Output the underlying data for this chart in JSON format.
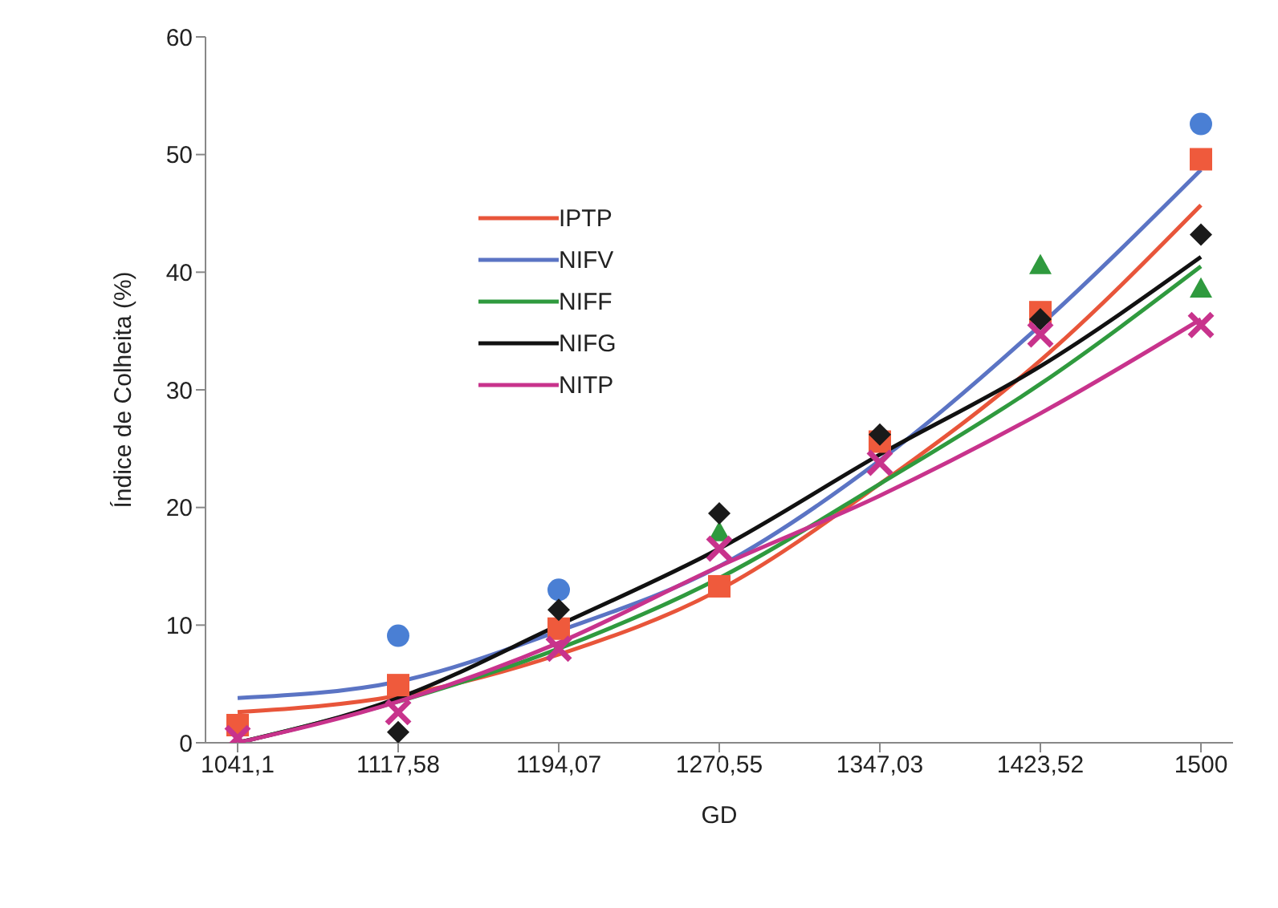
{
  "chart_data": {
    "type": "line",
    "xlabel": "GD",
    "ylabel": "Índice de Colheita (%)",
    "categories": [
      "1041,1",
      "1117,58",
      "1194,07",
      "1270,55",
      "1347,03",
      "1423,52",
      "1500"
    ],
    "ylim": [
      0,
      60
    ],
    "yticks": [
      0,
      10,
      20,
      30,
      40,
      50,
      60
    ],
    "grid": false,
    "legend": "top left",
    "line_style": "solid",
    "marker": "none",
    "series": [
      {
        "name": "IPTP",
        "color": "#e8553a",
        "values": [
          2.6,
          4,
          7.5,
          13,
          22,
          32.5,
          45.7
        ]
      },
      {
        "name": "NIFV",
        "color": "#5b74c4",
        "values": [
          3.8,
          5.2,
          9.5,
          15,
          24,
          35.5,
          48.7
        ]
      },
      {
        "name": "NIFF",
        "color": "#2f9a3e",
        "values": [
          0,
          3.5,
          8,
          14,
          22,
          30.5,
          40.5
        ]
      },
      {
        "name": "NIFG",
        "color": "#111111",
        "values": [
          0,
          3.8,
          10,
          16.5,
          24.5,
          32,
          41.3
        ]
      },
      {
        "name": "NITP",
        "color": "#c8338c",
        "values": [
          0,
          3.5,
          8.5,
          15,
          21,
          28,
          36
        ]
      },
      {
        "type": "scatter",
        "marker": "circle",
        "color": "#4a7fd4",
        "values": [
          null,
          9.1,
          13,
          null,
          null,
          null,
          52.6
        ]
      },
      {
        "type": "scatter",
        "marker": "square",
        "color": "#ef5a3c",
        "values": [
          1.5,
          4.9,
          9.7,
          13.3,
          25.6,
          36.6,
          49.6
        ]
      },
      {
        "type": "scatter",
        "marker": "triangle",
        "color": "#2f9a3e",
        "values": [
          null,
          null,
          null,
          17.9,
          null,
          40.6,
          38.6
        ]
      },
      {
        "type": "scatter",
        "marker": "diamond",
        "color": "#1a1a1a",
        "values": [
          null,
          0.9,
          11.3,
          19.5,
          26.2,
          36,
          43.2
        ]
      },
      {
        "type": "scatter",
        "marker": "cross",
        "color": "#c8338c",
        "values": [
          0.4,
          2.6,
          8,
          16.5,
          23.8,
          34.7,
          35.5
        ]
      }
    ]
  }
}
